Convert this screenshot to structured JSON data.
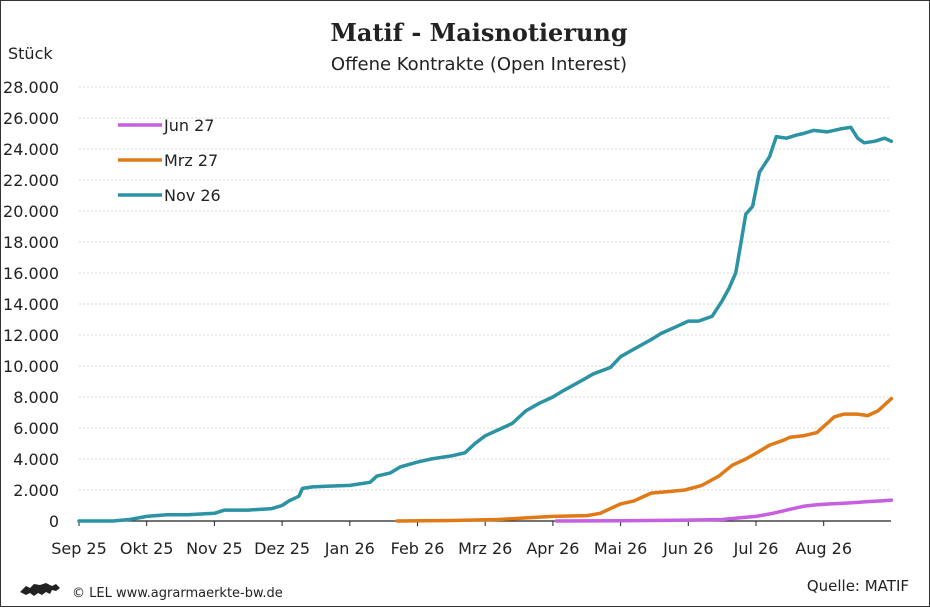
{
  "chart_data": {
    "type": "line",
    "title": "Matif - Maisnotierung",
    "subtitle": "Offene Kontrakte (Open Interest)",
    "ylabel": "Stück",
    "ylim": [
      0,
      28000
    ],
    "yticks": [
      0,
      2000,
      4000,
      6000,
      8000,
      10000,
      12000,
      14000,
      16000,
      18000,
      20000,
      22000,
      24000,
      26000,
      28000
    ],
    "ytick_labels": [
      "0",
      "2.000",
      "4.000",
      "6.000",
      "8.000",
      "10.000",
      "12.000",
      "14.000",
      "16.000",
      "18.000",
      "20.000",
      "22.000",
      "24.000",
      "26.000",
      "28.000"
    ],
    "x_categories": [
      "Sep 25",
      "Okt 25",
      "Nov 25",
      "Dez 25",
      "Jan 26",
      "Feb 26",
      "Mrz 26",
      "Apr 26",
      "Mai 26",
      "Jun 26",
      "Jul 26",
      "Aug 26"
    ],
    "grid": true,
    "legend_position": "top-left",
    "series": [
      {
        "name": "Jun 27",
        "color": "#c65fe0",
        "points": [
          [
            7.05,
            0
          ],
          [
            8.0,
            20
          ],
          [
            9.0,
            60
          ],
          [
            9.5,
            100
          ],
          [
            9.75,
            200
          ],
          [
            10.0,
            300
          ],
          [
            10.25,
            500
          ],
          [
            10.4,
            650
          ],
          [
            10.55,
            800
          ],
          [
            10.7,
            950
          ],
          [
            10.9,
            1050
          ],
          [
            11.1,
            1100
          ],
          [
            11.3,
            1150
          ],
          [
            11.5,
            1200
          ],
          [
            11.65,
            1250
          ],
          [
            11.85,
            1300
          ],
          [
            12.0,
            1350
          ]
        ]
      },
      {
        "name": "Mrz 27",
        "color": "#e07a16",
        "points": [
          [
            4.7,
            0
          ],
          [
            5.5,
            30
          ],
          [
            6.2,
            100
          ],
          [
            6.6,
            200
          ],
          [
            7.0,
            300
          ],
          [
            7.5,
            350
          ],
          [
            7.7,
            500
          ],
          [
            7.85,
            800
          ],
          [
            8.0,
            1100
          ],
          [
            8.2,
            1300
          ],
          [
            8.45,
            1800
          ],
          [
            8.7,
            1900
          ],
          [
            8.95,
            2000
          ],
          [
            9.2,
            2300
          ],
          [
            9.45,
            2900
          ],
          [
            9.65,
            3600
          ],
          [
            9.85,
            4000
          ],
          [
            10.05,
            4500
          ],
          [
            10.2,
            4900
          ],
          [
            10.4,
            5200
          ],
          [
            10.5,
            5400
          ],
          [
            10.7,
            5500
          ],
          [
            10.9,
            5700
          ],
          [
            11.05,
            6300
          ],
          [
            11.15,
            6700
          ],
          [
            11.3,
            6900
          ],
          [
            11.5,
            6900
          ],
          [
            11.65,
            6800
          ],
          [
            11.8,
            7100
          ],
          [
            11.9,
            7500
          ],
          [
            12.0,
            7900
          ]
        ]
      },
      {
        "name": "Nov 26",
        "color": "#2b93a3",
        "points": [
          [
            0.0,
            0
          ],
          [
            0.5,
            0
          ],
          [
            0.75,
            100
          ],
          [
            1.0,
            300
          ],
          [
            1.3,
            400
          ],
          [
            1.6,
            400
          ],
          [
            2.0,
            500
          ],
          [
            2.15,
            700
          ],
          [
            2.5,
            700
          ],
          [
            2.85,
            800
          ],
          [
            3.0,
            1000
          ],
          [
            3.1,
            1300
          ],
          [
            3.25,
            1600
          ],
          [
            3.3,
            2100
          ],
          [
            3.45,
            2200
          ],
          [
            3.7,
            2250
          ],
          [
            4.0,
            2300
          ],
          [
            4.3,
            2500
          ],
          [
            4.4,
            2900
          ],
          [
            4.6,
            3100
          ],
          [
            4.75,
            3500
          ],
          [
            5.0,
            3800
          ],
          [
            5.2,
            4000
          ],
          [
            5.5,
            4200
          ],
          [
            5.7,
            4400
          ],
          [
            5.85,
            5000
          ],
          [
            6.0,
            5500
          ],
          [
            6.2,
            5900
          ],
          [
            6.4,
            6300
          ],
          [
            6.6,
            7100
          ],
          [
            6.8,
            7600
          ],
          [
            7.0,
            8000
          ],
          [
            7.15,
            8400
          ],
          [
            7.4,
            9000
          ],
          [
            7.6,
            9500
          ],
          [
            7.85,
            9900
          ],
          [
            8.0,
            10600
          ],
          [
            8.2,
            11100
          ],
          [
            8.45,
            11700
          ],
          [
            8.6,
            12100
          ],
          [
            8.8,
            12500
          ],
          [
            9.0,
            12900
          ],
          [
            9.15,
            12900
          ],
          [
            9.35,
            13200
          ],
          [
            9.5,
            14200
          ],
          [
            9.6,
            15000
          ],
          [
            9.7,
            16000
          ],
          [
            9.78,
            18000
          ],
          [
            9.85,
            19800
          ],
          [
            9.95,
            20300
          ],
          [
            10.05,
            22500
          ],
          [
            10.2,
            23500
          ],
          [
            10.3,
            24800
          ],
          [
            10.45,
            24700
          ],
          [
            10.6,
            24900
          ],
          [
            10.7,
            25000
          ],
          [
            10.85,
            25200
          ],
          [
            11.05,
            25100
          ],
          [
            11.25,
            25300
          ],
          [
            11.4,
            25400
          ],
          [
            11.5,
            24700
          ],
          [
            11.6,
            24400
          ],
          [
            11.75,
            24500
          ],
          [
            11.9,
            24700
          ],
          [
            12.0,
            24500
          ]
        ]
      }
    ]
  },
  "footer": {
    "copyright": "© LEL www.agrarmaerkte-bw.de",
    "source": "Quelle: MATIF",
    "logo_icon": "lion-logo-icon"
  }
}
